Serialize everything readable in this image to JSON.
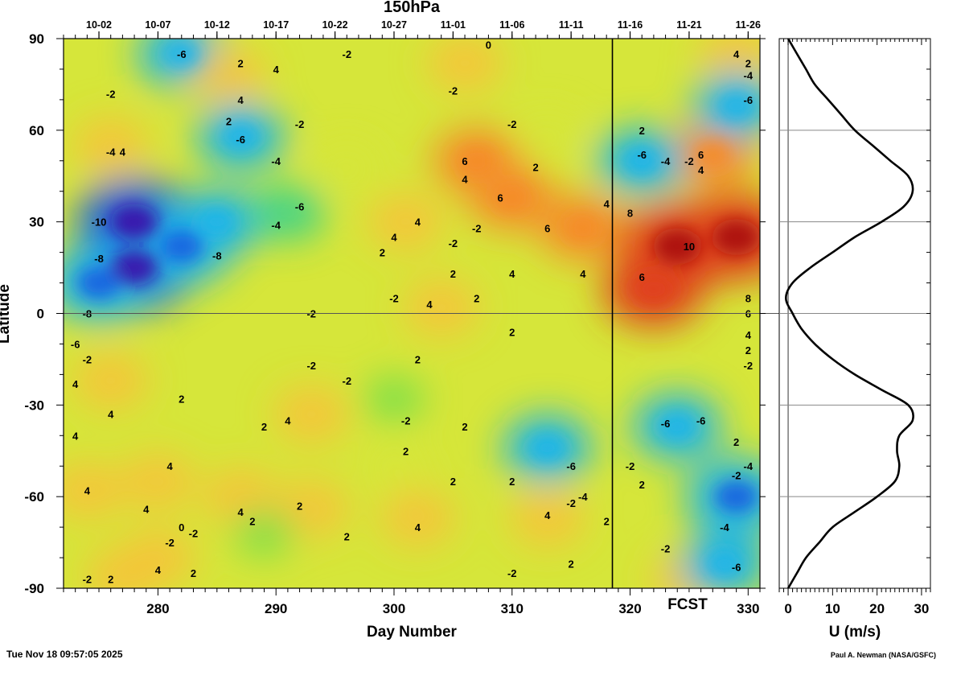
{
  "chart_data": [
    {
      "type": "heatmap",
      "title": "150hPa",
      "xlabel": "Day Number",
      "ylabel": "Latitude",
      "xlim": [
        272,
        331
      ],
      "ylim": [
        -90,
        90
      ],
      "x_ticks": [
        280,
        290,
        300,
        310,
        320,
        330
      ],
      "y_ticks": [
        90,
        60,
        30,
        0,
        -30,
        -60,
        -90
      ],
      "date_ticks": {
        "days": [
          275,
          280,
          285,
          290,
          295,
          300,
          305,
          310,
          315,
          320,
          325,
          330
        ],
        "labels": [
          "10-02",
          "10-07",
          "10-12",
          "10-17",
          "10-22",
          "10-27",
          "11-01",
          "11-06",
          "11-11",
          "11-16",
          "11-21",
          "11-26"
        ]
      },
      "forecast_start_day": 318.5,
      "forecast_label": "FCST",
      "colorscale": [
        "#3a0aa8",
        "#1b5fe0",
        "#1fb5e8",
        "#3ad38a",
        "#7ae04a",
        "#d6e63a",
        "#f5c43a",
        "#f58c2a",
        "#e0401e",
        "#a80e12"
      ],
      "value_range": [
        -12,
        12
      ],
      "features": [
        {
          "day": 278,
          "lat": 15,
          "value": -10
        },
        {
          "day": 278,
          "lat": 30,
          "value": -10
        },
        {
          "day": 282,
          "lat": 22,
          "value": -8
        },
        {
          "day": 275,
          "lat": 10,
          "value": -8
        },
        {
          "day": 285,
          "lat": 30,
          "value": -6
        },
        {
          "day": 291,
          "lat": 33,
          "value": -4
        },
        {
          "day": 282,
          "lat": 85,
          "value": -6
        },
        {
          "day": 287,
          "lat": 58,
          "value": -6
        },
        {
          "day": 286,
          "lat": 78,
          "value": 4
        },
        {
          "day": 276,
          "lat": 55,
          "value": 4
        },
        {
          "day": 306,
          "lat": 82,
          "value": 4
        },
        {
          "day": 307,
          "lat": 50,
          "value": 6
        },
        {
          "day": 310,
          "lat": 38,
          "value": 6
        },
        {
          "day": 316,
          "lat": 28,
          "value": 6
        },
        {
          "day": 301,
          "lat": 30,
          "value": 4
        },
        {
          "day": 304,
          "lat": 2,
          "value": 4
        },
        {
          "day": 324,
          "lat": 22,
          "value": 10
        },
        {
          "day": 329,
          "lat": 25,
          "value": 10
        },
        {
          "day": 322,
          "lat": 8,
          "value": 8
        },
        {
          "day": 327,
          "lat": 52,
          "value": 6
        },
        {
          "day": 329,
          "lat": 85,
          "value": 4
        },
        {
          "day": 329,
          "lat": 68,
          "value": -6
        },
        {
          "day": 321,
          "lat": 50,
          "value": -6
        },
        {
          "day": 293,
          "lat": -33,
          "value": 4
        },
        {
          "day": 280,
          "lat": -55,
          "value": 4
        },
        {
          "day": 287,
          "lat": -60,
          "value": 4
        },
        {
          "day": 274,
          "lat": -58,
          "value": 4
        },
        {
          "day": 293,
          "lat": -64,
          "value": 4
        },
        {
          "day": 302,
          "lat": -67,
          "value": 4
        },
        {
          "day": 313,
          "lat": -67,
          "value": 4
        },
        {
          "day": 277,
          "lat": -86,
          "value": 4
        },
        {
          "day": 280,
          "lat": -80,
          "value": 4
        },
        {
          "day": 325,
          "lat": -87,
          "value": 4
        },
        {
          "day": 313,
          "lat": -44,
          "value": -6
        },
        {
          "day": 324,
          "lat": -37,
          "value": -6
        },
        {
          "day": 329,
          "lat": -60,
          "value": -8
        },
        {
          "day": 328,
          "lat": -82,
          "value": -6
        },
        {
          "day": 300,
          "lat": -28,
          "value": -2
        },
        {
          "day": 289,
          "lat": -72,
          "value": -2
        },
        {
          "day": 296,
          "lat": 48,
          "value": 2
        },
        {
          "day": 313,
          "lat": 58,
          "value": 2
        },
        {
          "day": 300,
          "lat": -50,
          "value": 2
        },
        {
          "day": 276,
          "lat": -22,
          "value": 4
        }
      ],
      "contour_labels": [
        {
          "day": 275,
          "lat": 30,
          "text": "-10"
        },
        {
          "day": 275,
          "lat": 18,
          "text": "-8"
        },
        {
          "day": 285,
          "lat": 19,
          "text": "-8"
        },
        {
          "day": 273,
          "lat": -10,
          "text": "-6"
        },
        {
          "day": 274,
          "lat": 0,
          "text": "-8"
        },
        {
          "day": 290,
          "lat": 29,
          "text": "-4"
        },
        {
          "day": 292,
          "lat": 35,
          "text": "-6"
        },
        {
          "day": 287,
          "lat": 57,
          "text": "-6"
        },
        {
          "day": 290,
          "lat": 50,
          "text": "-4"
        },
        {
          "day": 276,
          "lat": 53,
          "text": "-4"
        },
        {
          "day": 277,
          "lat": 53,
          "text": "4"
        },
        {
          "day": 282,
          "lat": 85,
          "text": "-6"
        },
        {
          "day": 290,
          "lat": 80,
          "text": "4"
        },
        {
          "day": 287,
          "lat": 82,
          "text": "2"
        },
        {
          "day": 287,
          "lat": 70,
          "text": "4"
        },
        {
          "day": 296,
          "lat": 85,
          "text": "-2"
        },
        {
          "day": 276,
          "lat": 72,
          "text": "-2"
        },
        {
          "day": 286,
          "lat": 63,
          "text": "2"
        },
        {
          "day": 292,
          "lat": 62,
          "text": "-2"
        },
        {
          "day": 305,
          "lat": 73,
          "text": "-2"
        },
        {
          "day": 306,
          "lat": 50,
          "text": "6"
        },
        {
          "day": 306,
          "lat": 44,
          "text": "4"
        },
        {
          "day": 309,
          "lat": 38,
          "text": "6"
        },
        {
          "day": 310,
          "lat": 62,
          "text": "-2"
        },
        {
          "day": 308,
          "lat": 88,
          "text": "0"
        },
        {
          "day": 312,
          "lat": 48,
          "text": "2"
        },
        {
          "day": 302,
          "lat": 30,
          "text": "4"
        },
        {
          "day": 300,
          "lat": 25,
          "text": "4"
        },
        {
          "day": 299,
          "lat": 20,
          "text": "2"
        },
        {
          "day": 305,
          "lat": 23,
          "text": "-2"
        },
        {
          "day": 305,
          "lat": 13,
          "text": "2"
        },
        {
          "day": 310,
          "lat": 13,
          "text": "4"
        },
        {
          "day": 313,
          "lat": 28,
          "text": "6"
        },
        {
          "day": 316,
          "lat": 13,
          "text": "4"
        },
        {
          "day": 318,
          "lat": 36,
          "text": "4"
        },
        {
          "day": 307,
          "lat": 28,
          "text": "-2"
        },
        {
          "day": 307,
          "lat": 5,
          "text": "2"
        },
        {
          "day": 303,
          "lat": 3,
          "text": "4"
        },
        {
          "day": 293,
          "lat": 0,
          "text": "-2"
        },
        {
          "day": 300,
          "lat": 5,
          "text": "-2"
        },
        {
          "day": 310,
          "lat": -6,
          "text": "2"
        },
        {
          "day": 302,
          "lat": -15,
          "text": "2"
        },
        {
          "day": 293,
          "lat": -17,
          "text": "-2"
        },
        {
          "day": 296,
          "lat": -22,
          "text": "-2"
        },
        {
          "day": 274,
          "lat": -15,
          "text": "-2"
        },
        {
          "day": 273,
          "lat": -23,
          "text": "4"
        },
        {
          "day": 276,
          "lat": -33,
          "text": "4"
        },
        {
          "day": 273,
          "lat": -40,
          "text": "4"
        },
        {
          "day": 282,
          "lat": -28,
          "text": "2"
        },
        {
          "day": 291,
          "lat": -35,
          "text": "4"
        },
        {
          "day": 289,
          "lat": -37,
          "text": "2"
        },
        {
          "day": 281,
          "lat": -50,
          "text": "4"
        },
        {
          "day": 274,
          "lat": -58,
          "text": "4"
        },
        {
          "day": 279,
          "lat": -64,
          "text": "4"
        },
        {
          "day": 287,
          "lat": -65,
          "text": "4"
        },
        {
          "day": 288,
          "lat": -68,
          "text": "2"
        },
        {
          "day": 292,
          "lat": -63,
          "text": "2"
        },
        {
          "day": 296,
          "lat": -73,
          "text": "2"
        },
        {
          "day": 301,
          "lat": -35,
          "text": "-2"
        },
        {
          "day": 306,
          "lat": -37,
          "text": "2"
        },
        {
          "day": 302,
          "lat": -70,
          "text": "4"
        },
        {
          "day": 301,
          "lat": -45,
          "text": "2"
        },
        {
          "day": 305,
          "lat": -55,
          "text": "2"
        },
        {
          "day": 310,
          "lat": -55,
          "text": "2"
        },
        {
          "day": 310,
          "lat": -85,
          "text": "-2"
        },
        {
          "day": 313,
          "lat": -66,
          "text": "4"
        },
        {
          "day": 315,
          "lat": -62,
          "text": "-2"
        },
        {
          "day": 316,
          "lat": -60,
          "text": "-4"
        },
        {
          "day": 315,
          "lat": -50,
          "text": "-6"
        },
        {
          "day": 318,
          "lat": -68,
          "text": "2"
        },
        {
          "day": 315,
          "lat": -82,
          "text": "2"
        },
        {
          "day": 320,
          "lat": -50,
          "text": "-2"
        },
        {
          "day": 321,
          "lat": -56,
          "text": "2"
        },
        {
          "day": 323,
          "lat": -36,
          "text": "-6"
        },
        {
          "day": 326,
          "lat": -35,
          "text": "-6"
        },
        {
          "day": 329,
          "lat": -42,
          "text": "2"
        },
        {
          "day": 330,
          "lat": -50,
          "text": "-4"
        },
        {
          "day": 329,
          "lat": -53,
          "text": "-2"
        },
        {
          "day": 328,
          "lat": -70,
          "text": "-4"
        },
        {
          "day": 329,
          "lat": -83,
          "text": "-6"
        },
        {
          "day": 323,
          "lat": -77,
          "text": "-2"
        },
        {
          "day": 281,
          "lat": -75,
          "text": "-2"
        },
        {
          "day": 282,
          "lat": -70,
          "text": "0"
        },
        {
          "day": 283,
          "lat": -72,
          "text": "-2"
        },
        {
          "day": 280,
          "lat": -84,
          "text": "4"
        },
        {
          "day": 283,
          "lat": -85,
          "text": "2"
        },
        {
          "day": 276,
          "lat": -87,
          "text": "2"
        },
        {
          "day": 274,
          "lat": -87,
          "text": "-2"
        },
        {
          "day": 321,
          "lat": 52,
          "text": "-6"
        },
        {
          "day": 323,
          "lat": 50,
          "text": "-4"
        },
        {
          "day": 325,
          "lat": 50,
          "text": "-2"
        },
        {
          "day": 326,
          "lat": 52,
          "text": "6"
        },
        {
          "day": 326,
          "lat": 47,
          "text": "4"
        },
        {
          "day": 321,
          "lat": 60,
          "text": "2"
        },
        {
          "day": 330,
          "lat": 70,
          "text": "-6"
        },
        {
          "day": 330,
          "lat": 78,
          "text": "-4"
        },
        {
          "day": 329,
          "lat": 85,
          "text": "4"
        },
        {
          "day": 330,
          "lat": 82,
          "text": "2"
        },
        {
          "day": 325,
          "lat": 22,
          "text": "10"
        },
        {
          "day": 330,
          "lat": 5,
          "text": "8"
        },
        {
          "day": 330,
          "lat": 0,
          "text": "6"
        },
        {
          "day": 330,
          "lat": -7,
          "text": "4"
        },
        {
          "day": 330,
          "lat": -12,
          "text": "2"
        },
        {
          "day": 330,
          "lat": -17,
          "text": "-2"
        },
        {
          "day": 320,
          "lat": 33,
          "text": "8"
        },
        {
          "day": 321,
          "lat": 12,
          "text": "6"
        }
      ]
    },
    {
      "type": "line",
      "xlabel": "U (m/s)",
      "xlim": [
        -2,
        32
      ],
      "ylim": [
        -90,
        90
      ],
      "x_ticks": [
        0,
        10,
        20,
        30
      ],
      "series": [
        {
          "lat": [
            90,
            85,
            80,
            75,
            70,
            65,
            60,
            55,
            50,
            45,
            40,
            35,
            30,
            25,
            20,
            15,
            10,
            5,
            0,
            -5,
            -10,
            -15,
            -20,
            -25,
            -30,
            -35,
            -40,
            -45,
            -50,
            -55,
            -60,
            -65,
            -70,
            -75,
            -80,
            -85,
            -90
          ],
          "u": [
            0,
            2,
            4,
            6,
            9,
            12,
            15,
            19,
            23,
            27,
            28,
            26,
            21,
            15,
            10,
            5,
            1,
            -0.5,
            1,
            3,
            6,
            10,
            15,
            21,
            27,
            28,
            25,
            24.5,
            25,
            24,
            20,
            15,
            10,
            7,
            4,
            2,
            0
          ]
        }
      ]
    }
  ],
  "footer": {
    "timestamp": "Tue Nov 18 09:57:05 2025",
    "credit": "Paul A. Newman (NASA/GSFC)"
  },
  "colors": {
    "axis": "#000000",
    "grid": "#777777"
  }
}
